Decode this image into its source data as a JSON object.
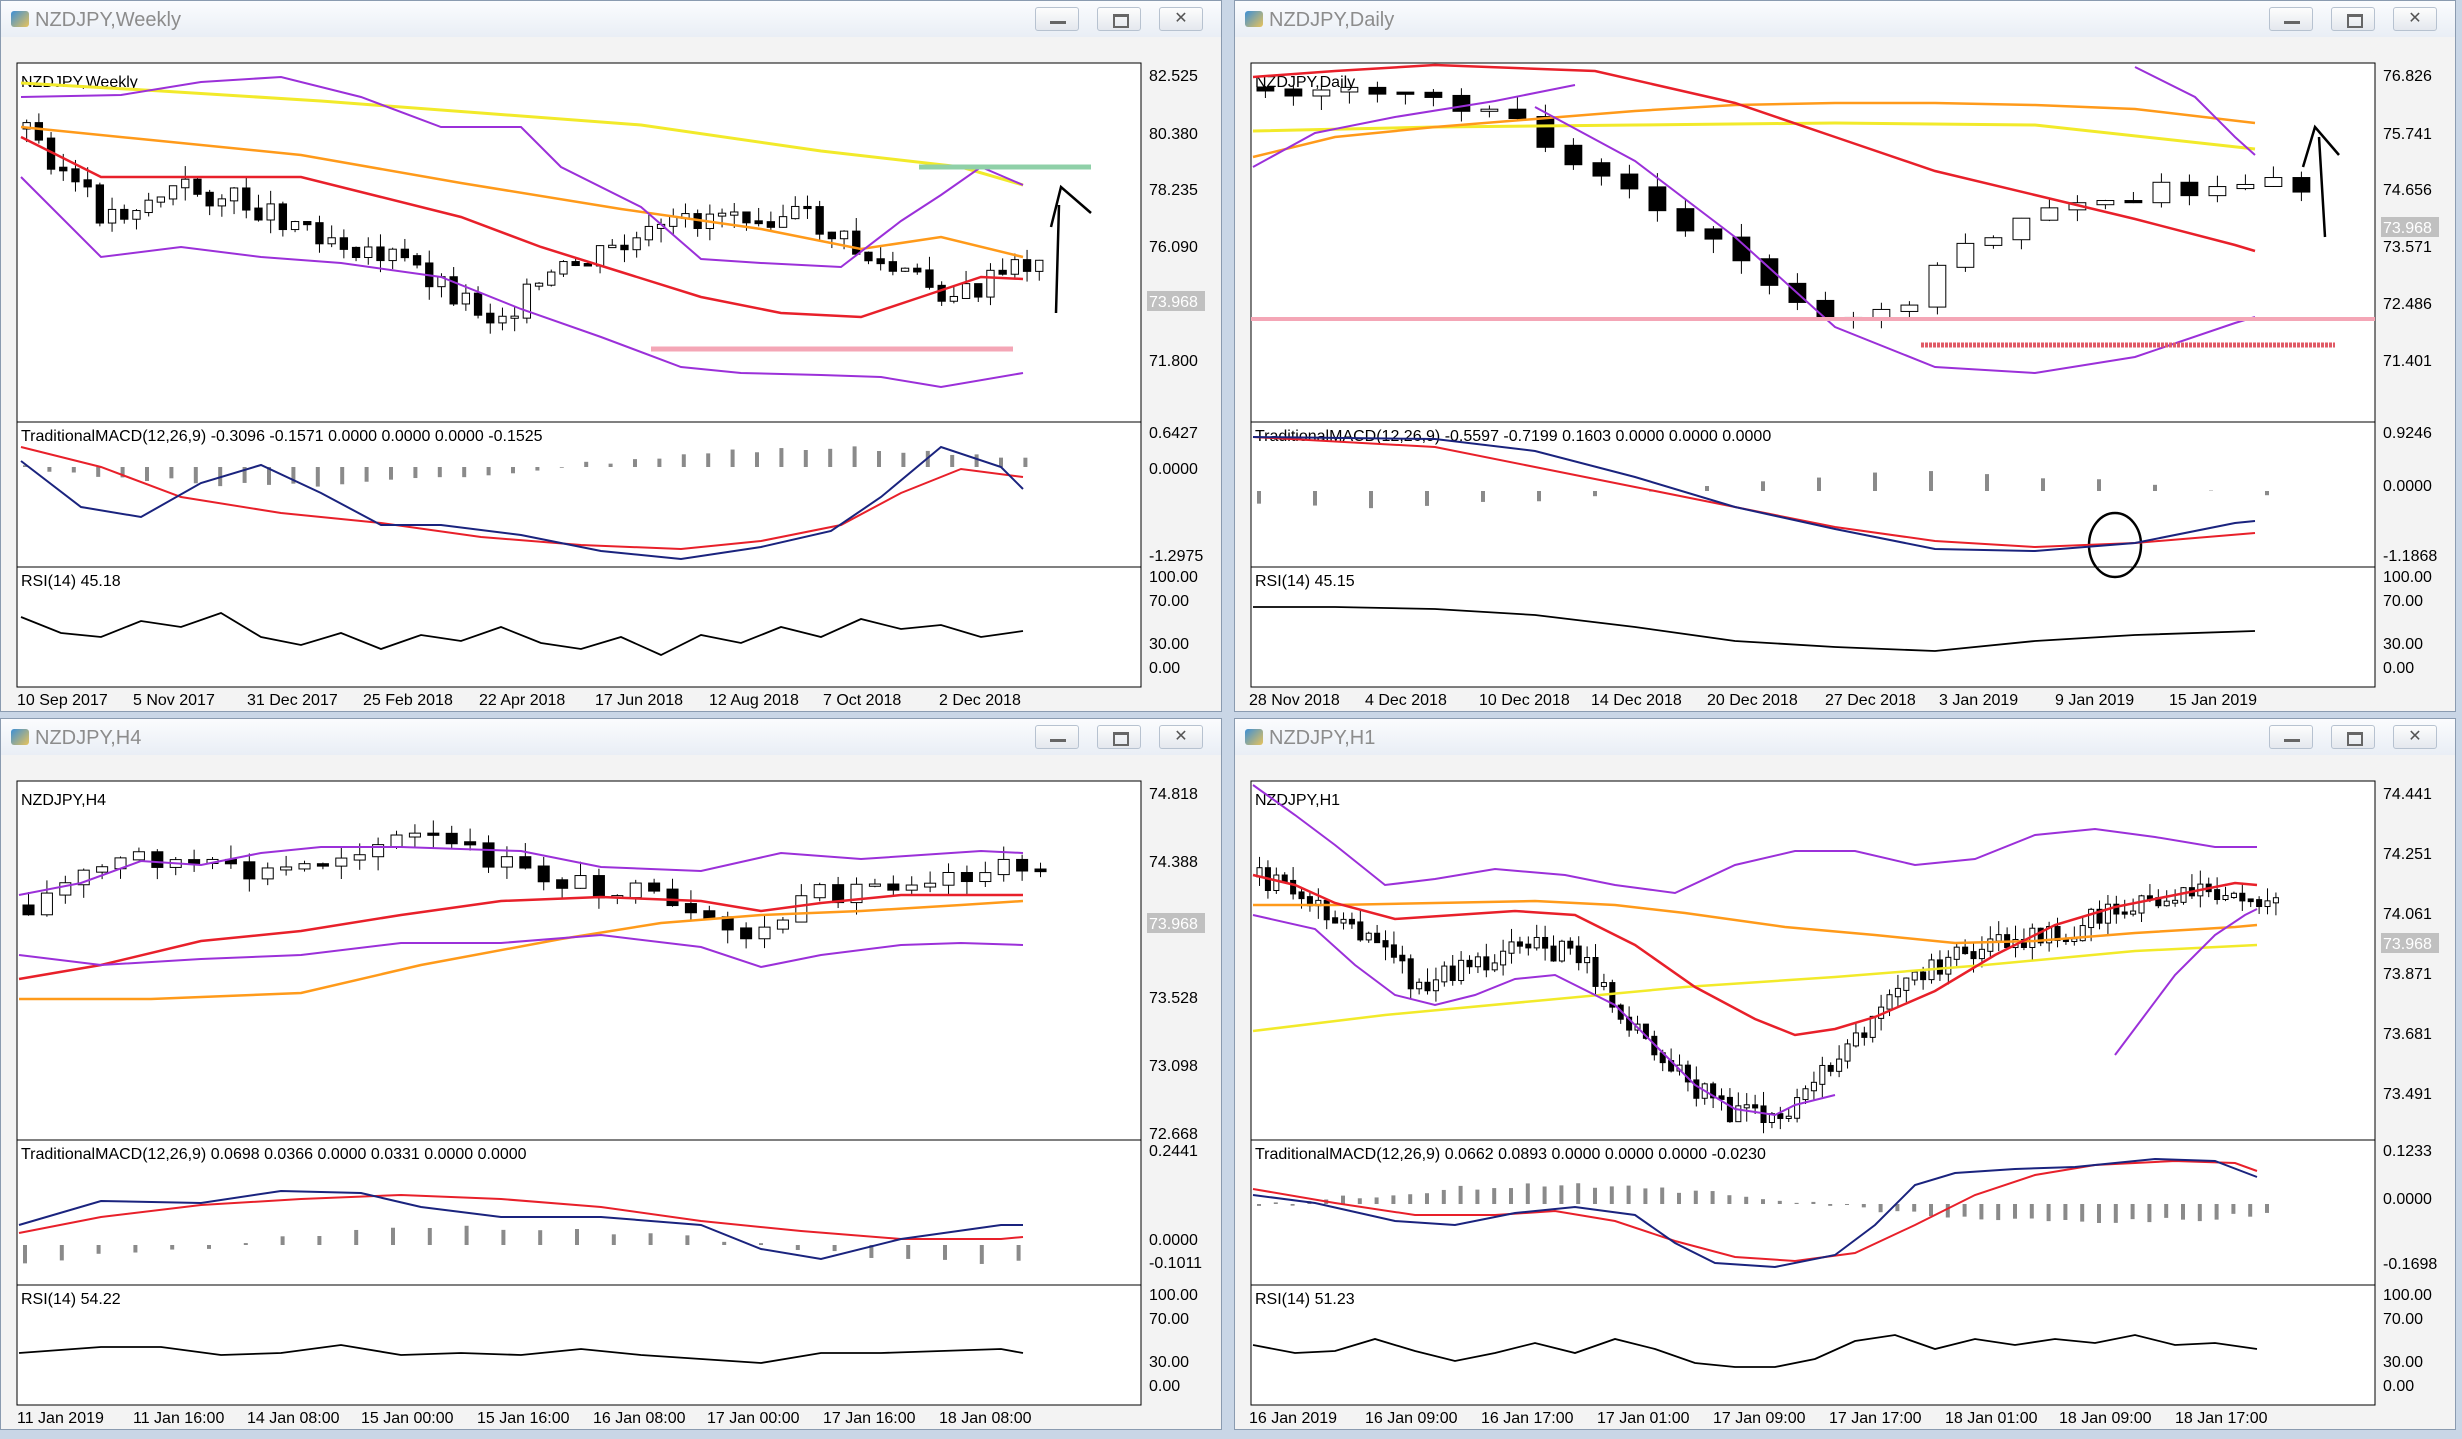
{
  "windows": [
    {
      "title": "NZDJPY,Weekly",
      "chart_label": "NZDJPY,Weekly",
      "price_labels": [
        "82.525",
        "80.380",
        "78.235",
        "76.090",
        "71.800"
      ],
      "current_price": "73.968",
      "macd_label": "TraditionalMACD(12,26,9) -0.3096 -0.1571 0.0000 0.0000 0.0000 -0.1525",
      "macd_scale": [
        "0.6427",
        "0.0000",
        "-1.2975"
      ],
      "rsi_label": "RSI(14) 45.18",
      "rsi_scale": [
        "100.00",
        "70.00",
        "30.00",
        "0.00"
      ],
      "dates": [
        "10 Sep 2017",
        "5 Nov 2017",
        "31 Dec 2017",
        "25 Feb 2018",
        "22 Apr 2018",
        "17 Jun 2018",
        "12 Aug 2018",
        "7 Oct 2018",
        "2 Dec 2018"
      ]
    },
    {
      "title": "NZDJPY,Daily",
      "chart_label": "NZDJPY,Daily",
      "price_labels": [
        "76.826",
        "75.741",
        "74.656",
        "73.571",
        "72.486",
        "71.401"
      ],
      "current_price": "73.968",
      "macd_label": "TraditionalMACD(12,26,9) -0.5597 -0.7199 0.1603 0.0000 0.0000 0.0000",
      "macd_scale": [
        "0.9246",
        "0.0000",
        "-1.1868"
      ],
      "rsi_label": "RSI(14) 45.15",
      "rsi_scale": [
        "100.00",
        "70.00",
        "30.00",
        "0.00"
      ],
      "dates": [
        "28 Nov 2018",
        "4 Dec 2018",
        "10 Dec 2018",
        "14 Dec 2018",
        "20 Dec 2018",
        "27 Dec 2018",
        "3 Jan 2019",
        "9 Jan 2019",
        "15 Jan 2019"
      ]
    },
    {
      "title": "NZDJPY,H4",
      "chart_label": "NZDJPY,H4",
      "price_labels": [
        "74.818",
        "74.388",
        "73.528",
        "73.098",
        "72.668"
      ],
      "current_price": "73.968",
      "macd_label": "TraditionalMACD(12,26,9) 0.0698 0.0366 0.0000 0.0331 0.0000 0.0000",
      "macd_scale": [
        "0.2441",
        "0.0000",
        "-0.1011"
      ],
      "rsi_label": "RSI(14) 54.22",
      "rsi_scale": [
        "100.00",
        "70.00",
        "30.00",
        "0.00"
      ],
      "dates": [
        "11 Jan 2019",
        "11 Jan 16:00",
        "14 Jan 08:00",
        "15 Jan 00:00",
        "15 Jan 16:00",
        "16 Jan 08:00",
        "17 Jan 00:00",
        "17 Jan 16:00",
        "18 Jan 08:00"
      ]
    },
    {
      "title": "NZDJPY,H1",
      "chart_label": "NZDJPY,H1",
      "price_labels": [
        "74.441",
        "74.251",
        "74.061",
        "73.871",
        "73.681",
        "73.491"
      ],
      "current_price": "73.968",
      "macd_label": "TraditionalMACD(12,26,9) 0.0662 0.0893 0.0000 0.0000 0.0000 -0.0230",
      "macd_scale": [
        "0.1233",
        "0.0000",
        "-0.1698"
      ],
      "rsi_label": "RSI(14) 51.23",
      "rsi_scale": [
        "100.00",
        "70.00",
        "30.00",
        "0.00"
      ],
      "dates": [
        "16 Jan 2019",
        "16 Jan 09:00",
        "16 Jan 17:00",
        "17 Jan 01:00",
        "17 Jan 09:00",
        "17 Jan 17:00",
        "18 Jan 01:00",
        "18 Jan 09:00",
        "18 Jan 17:00"
      ]
    }
  ],
  "colors": {
    "bollinger": "#9b30d9",
    "ma_fast": "#e8202a",
    "ma_mid": "#ff9a1a",
    "ma_slow": "#f2ea2a",
    "support": "#f4a6b6",
    "resistance": "#8fd0a8",
    "macd_signal": "#e8202a",
    "macd_main": "#1a237e",
    "histogram": "#8a8a8a"
  },
  "icons": [
    "chart-window-icon",
    "minimize-icon",
    "maximize-icon",
    "close-icon"
  ]
}
